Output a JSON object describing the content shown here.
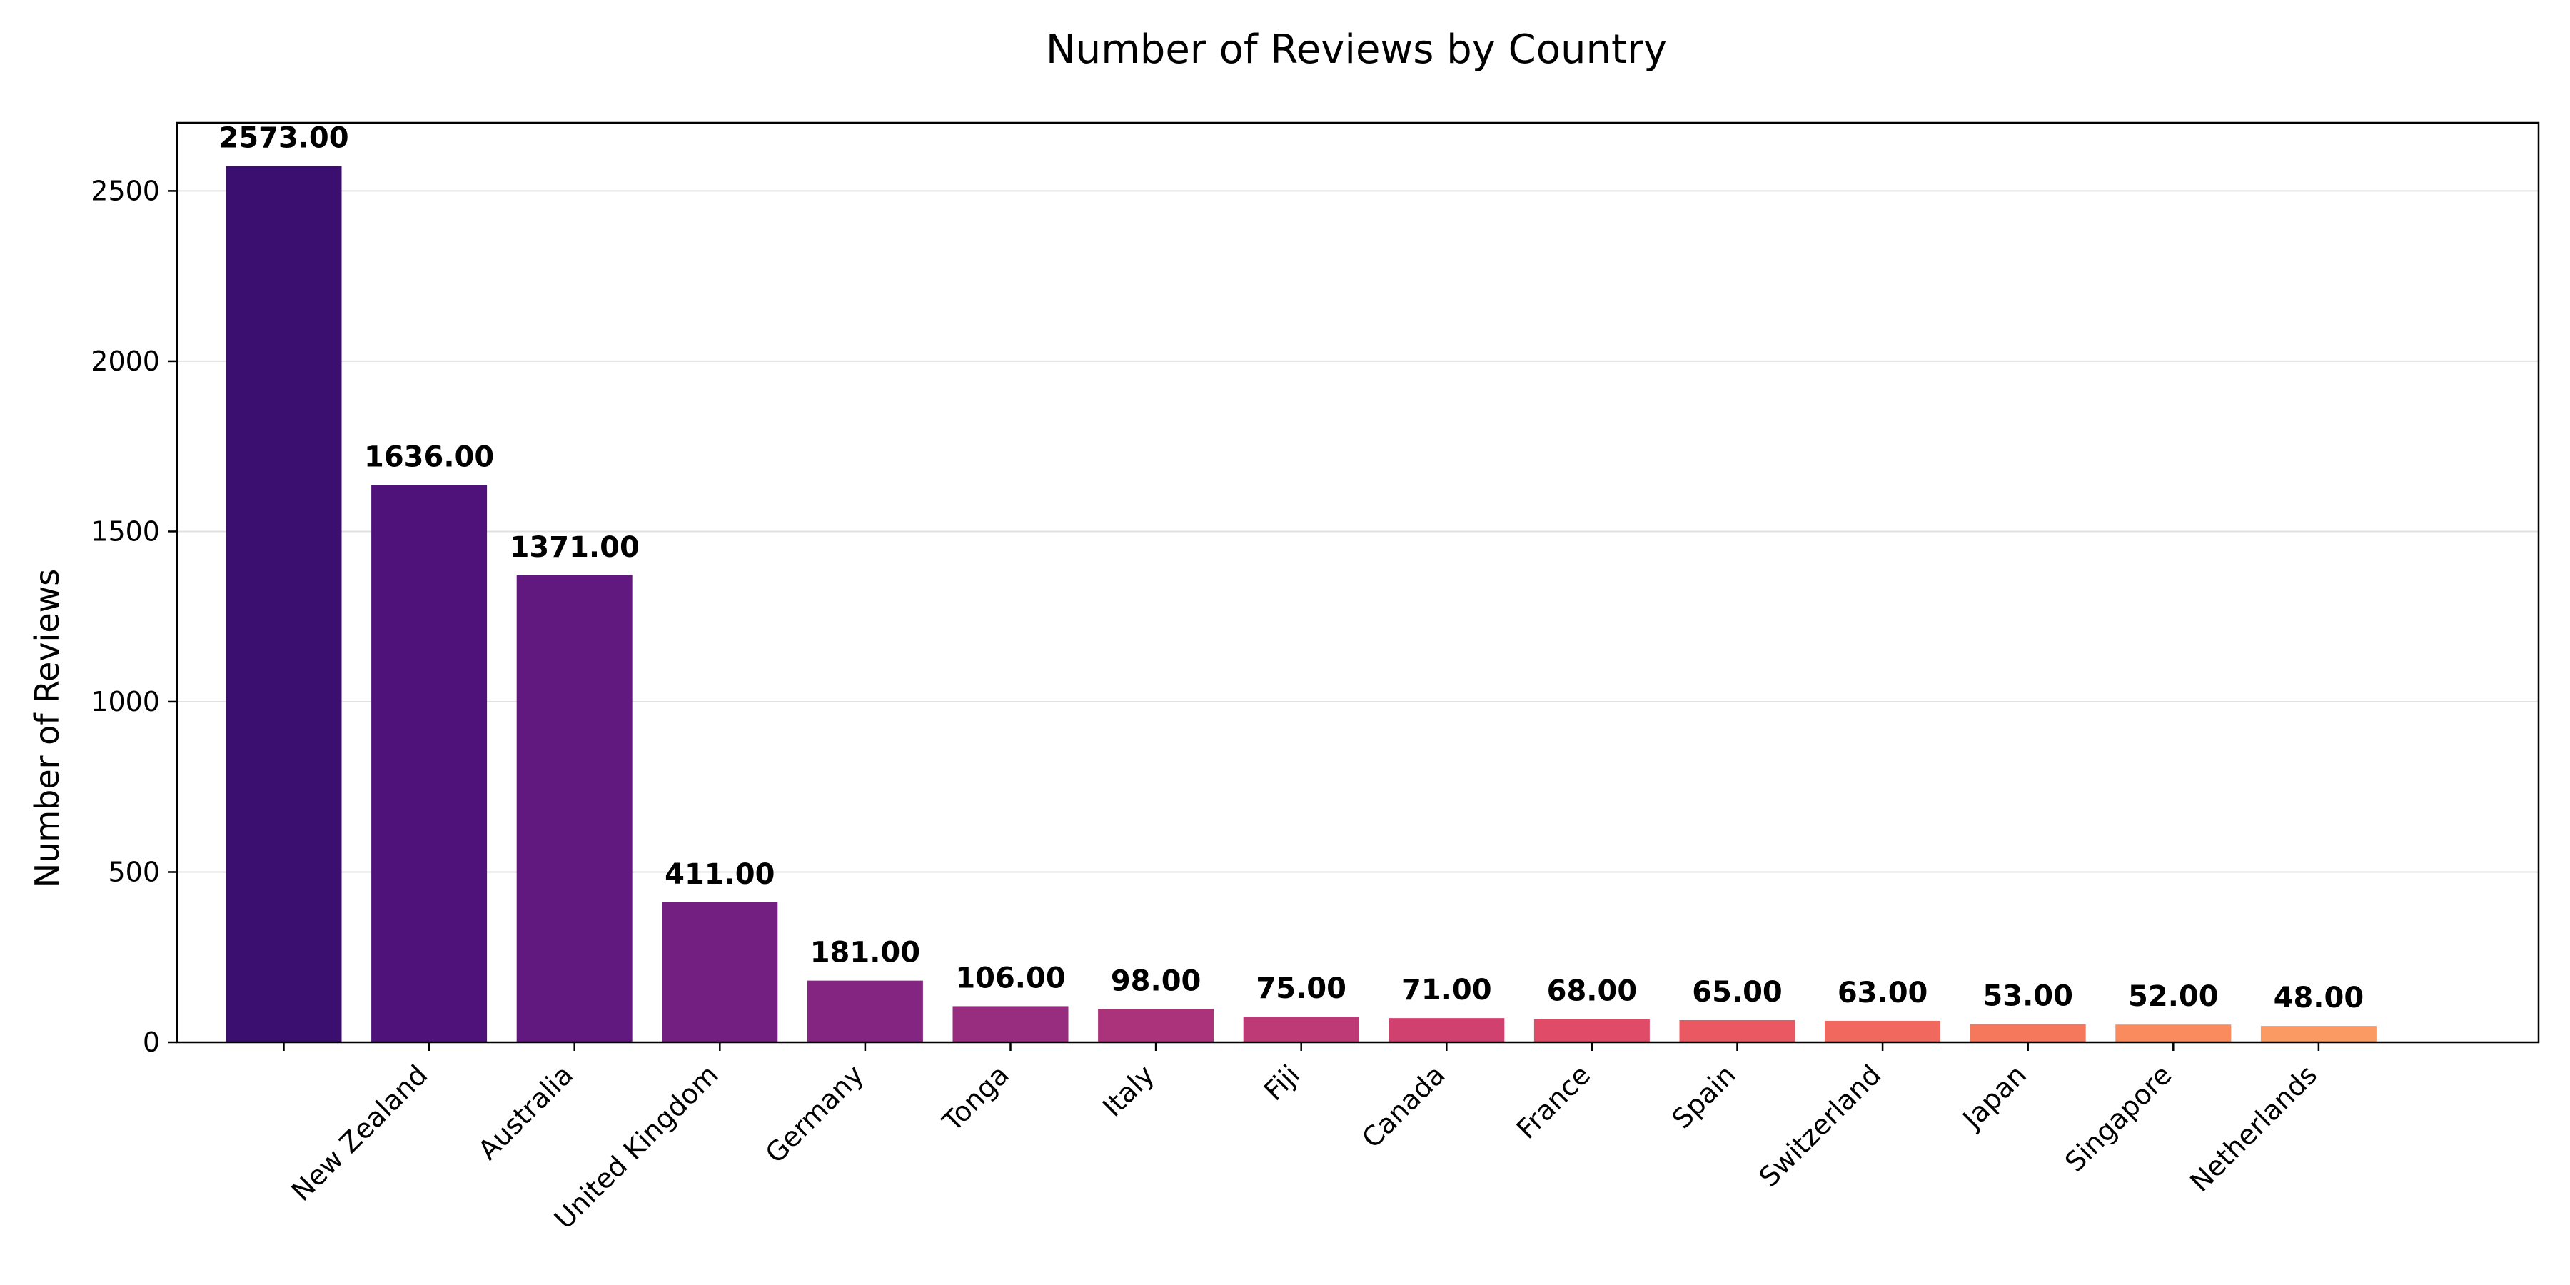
{
  "chart_data": {
    "type": "bar",
    "title": "Number of Reviews by Country",
    "xlabel": "",
    "ylabel": "Number of Reviews",
    "categories": [
      "",
      "New Zealand",
      "Australia",
      "United Kingdom",
      "Germany",
      "Tonga",
      "Italy",
      "Fiji",
      "Canada",
      "France",
      "Spain",
      "Switzerland",
      "Japan",
      "Singapore",
      "Netherlands"
    ],
    "values": [
      2573,
      1636,
      1371,
      411,
      181,
      106,
      98,
      75,
      71,
      68,
      65,
      63,
      53,
      52,
      48
    ],
    "value_labels": [
      "2573.00",
      "1636.00",
      "1371.00",
      "411.00",
      "181.00",
      "106.00",
      "98.00",
      "75.00",
      "71.00",
      "68.00",
      "65.00",
      "63.00",
      "53.00",
      "52.00",
      "48.00"
    ],
    "colors": [
      "#3b0f70",
      "#4f127b",
      "#61187f",
      "#721f81",
      "#842681",
      "#982d80",
      "#ab337c",
      "#be3a77",
      "#d0416f",
      "#e04c67",
      "#ea5961",
      "#f1685e",
      "#f6785c",
      "#f98b5e",
      "#fb9a63"
    ],
    "ylim": [
      0,
      2700
    ],
    "yticks": [
      0,
      500,
      1000,
      1500,
      2000,
      2500
    ],
    "ytick_labels": [
      "0",
      "500",
      "1000",
      "1500",
      "2000",
      "2500"
    ],
    "grid": "horizontal",
    "legend": "none"
  }
}
